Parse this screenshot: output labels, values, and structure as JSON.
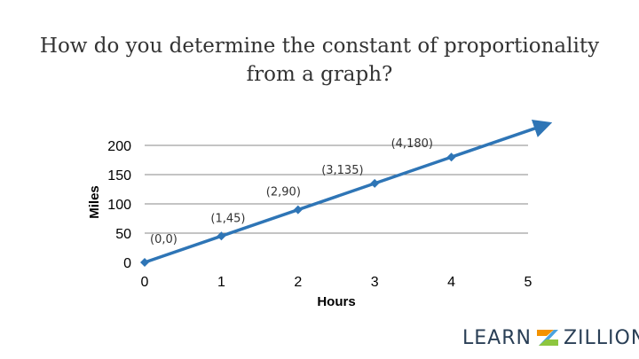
{
  "slide": {
    "title_line1": "How do you determine the constant of proportionality",
    "title_line2": "from a graph?"
  },
  "chart_data": {
    "type": "line",
    "title": "",
    "xlabel": "Hours",
    "ylabel": "Miles",
    "xlim": [
      0,
      5
    ],
    "ylim": [
      0,
      200
    ],
    "x_ticks": [
      "0",
      "1",
      "2",
      "3",
      "4",
      "5"
    ],
    "y_ticks": [
      "0",
      "50",
      "100",
      "150",
      "200"
    ],
    "grid": "horizontal",
    "legend": "none",
    "line_color": "#2e75b6",
    "grid_color": "#888888",
    "arrow_end": {
      "x": 5.2,
      "y": 234
    },
    "series": [
      {
        "x": [
          0,
          1,
          2,
          3,
          4
        ],
        "y": [
          0,
          45,
          90,
          135,
          180
        ],
        "labels": [
          "(0,0)",
          "(1,45)",
          "(2,90)",
          "(3,135)",
          "(4,180)"
        ]
      }
    ]
  },
  "logo": {
    "left_text": "LEARN",
    "right_text": "ZILLION",
    "mark_icon": "learnzillion-mark-icon",
    "colors": {
      "orange": "#f39200",
      "blue": "#4aa3df",
      "green": "#8dc63f"
    }
  }
}
